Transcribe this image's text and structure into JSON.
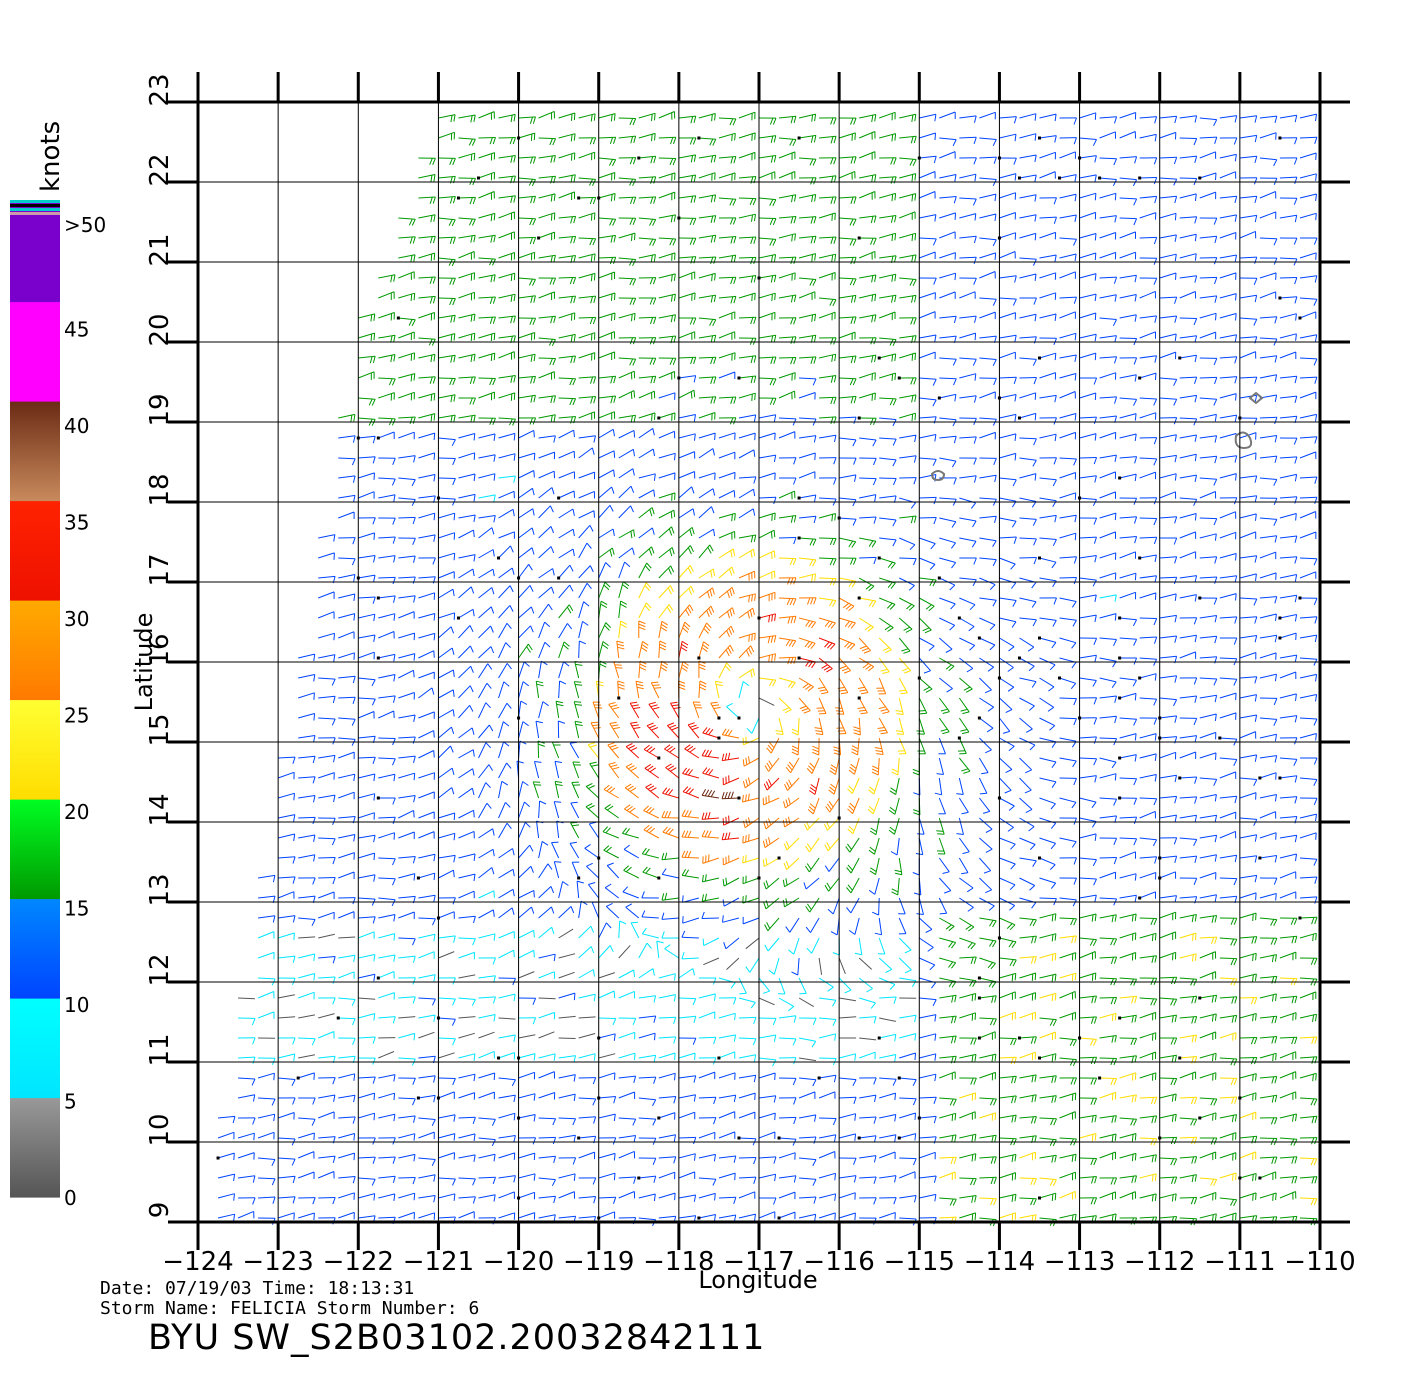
{
  "chart_data": {
    "type": "wind-barb-map",
    "xlabel": "Longitude",
    "ylabel": "Latitude",
    "xlim": [
      -124,
      -110
    ],
    "ylim": [
      9,
      23
    ],
    "x_ticks": [
      "-124",
      "-123",
      "-122",
      "-121",
      "-120",
      "-119",
      "-118",
      "-117",
      "-116",
      "-115",
      "-114",
      "-113",
      "-112",
      "-111",
      "-110"
    ],
    "y_ticks": [
      "9",
      "10",
      "11",
      "12",
      "13",
      "14",
      "15",
      "16",
      "17",
      "18",
      "19",
      "20",
      "21",
      "22",
      "23"
    ],
    "grid": true,
    "storm_center": {
      "lon": -117.1,
      "lat": 15.4
    },
    "colorbar": {
      "title": "knots",
      "labels": [
        ">50",
        "45",
        "40",
        "35",
        "30",
        "25",
        "20",
        "15",
        "10",
        "5",
        "0"
      ],
      "bands": [
        {
          "min": 0,
          "max": 5,
          "color": "#555555"
        },
        {
          "min": 5,
          "max": 10,
          "color": "#00e5ff"
        },
        {
          "min": 10,
          "max": 15,
          "color": "#0044ff"
        },
        {
          "min": 15,
          "max": 20,
          "color": "#009900"
        },
        {
          "min": 20,
          "max": 25,
          "color": "#ffdd00"
        },
        {
          "min": 25,
          "max": 30,
          "color": "#ff7a00"
        },
        {
          "min": 30,
          "max": 35,
          "color": "#ee1100"
        },
        {
          "min": 35,
          "max": 40,
          "color": "#6a2a14"
        },
        {
          "min": 40,
          "max": 45,
          "color": "#ff00ff"
        },
        {
          "min": 45,
          "max": 50,
          "color": "#7a00cc"
        }
      ]
    }
  },
  "footer": {
    "date_line": "Date: 07/19/03   Time: 18:13:31",
    "storm_line": "Storm Name: FELICIA   Storm Number: 6",
    "product_id": "BYU SW_S2B03102.20032842111"
  },
  "colors": {
    "grid": "#000000",
    "land_contour": "#777777"
  }
}
